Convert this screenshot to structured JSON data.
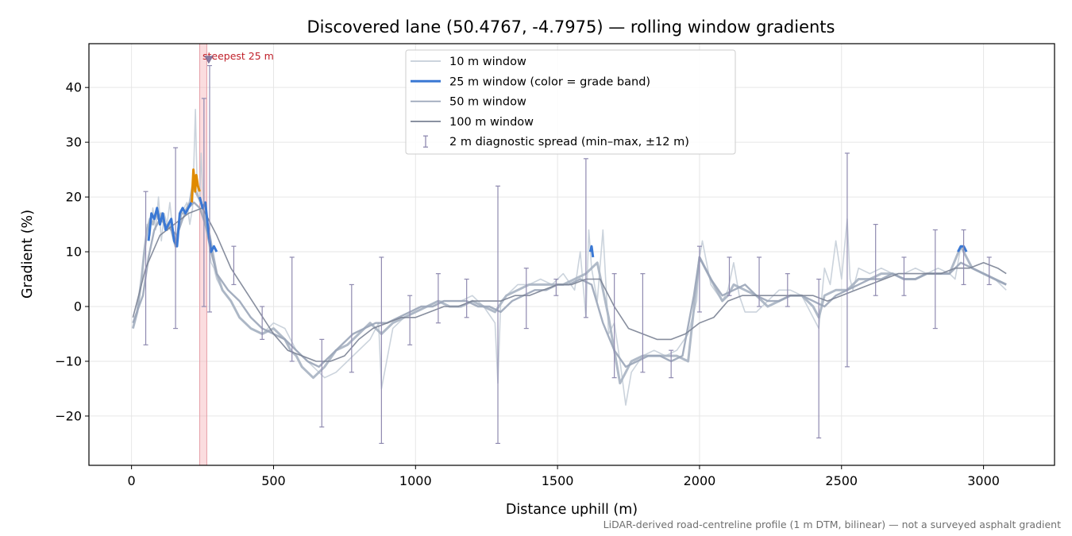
{
  "chart_data": {
    "type": "line",
    "title": "Discovered lane (50.4767, -4.7975) — rolling window gradients",
    "xlabel": "Distance uphill (m)",
    "ylabel": "Gradient (%)",
    "xlim": [
      -150,
      3250
    ],
    "ylim": [
      -29,
      48
    ],
    "x_ticks": [
      0,
      500,
      1000,
      1500,
      2000,
      2500,
      3000
    ],
    "y_ticks": [
      -20,
      -10,
      0,
      10,
      20,
      30,
      40
    ],
    "x_tick_labels": [
      "0",
      "500",
      "1000",
      "1500",
      "2000",
      "2500",
      "3000"
    ],
    "y_tick_labels": [
      "−20",
      "−10",
      "0",
      "10",
      "20",
      "30",
      "40"
    ],
    "grid": true,
    "legend_position": "top-center",
    "footnote": "LiDAR-derived road-centreline profile (1 m DTM, bilinear) — not a surveyed asphalt gradient",
    "annotation": {
      "label": "steepest 25 m",
      "span_x": [
        240,
        265
      ],
      "marker": {
        "x": 272,
        "y": 45
      },
      "color": "#c0202a"
    },
    "legend": [
      {
        "label": "10 m window",
        "style": "line",
        "color": "#c5ced8"
      },
      {
        "label": "25 m window (color = grade band)",
        "style": "line-thick",
        "color": "#3a78d4"
      },
      {
        "label": "50 m window",
        "style": "line",
        "color": "#9aa5b8"
      },
      {
        "label": "100 m window",
        "style": "line",
        "color": "#7a8294"
      },
      {
        "label": "2 m diagnostic spread (min–max, ±12 m)",
        "style": "errorbar",
        "color": "#8f8ab0"
      }
    ],
    "series": [
      {
        "name": "10 m window",
        "color": "#c5ced8",
        "x": [
          5,
          20,
          35,
          45,
          55,
          65,
          75,
          85,
          95,
          105,
          115,
          125,
          135,
          145,
          155,
          165,
          175,
          185,
          195,
          205,
          215,
          225,
          230,
          235,
          240,
          245,
          250,
          255,
          260,
          265,
          270,
          275,
          280,
          290,
          300,
          320,
          350,
          380,
          420,
          460,
          500,
          540,
          560,
          580,
          600,
          640,
          680,
          720,
          760,
          800,
          840,
          870,
          880,
          920,
          960,
          1000,
          1040,
          1080,
          1120,
          1160,
          1200,
          1240,
          1280,
          1290,
          1300,
          1320,
          1360,
          1400,
          1440,
          1480,
          1520,
          1560,
          1580,
          1600,
          1610,
          1620,
          1640,
          1660,
          1680,
          1700,
          1720,
          1740,
          1760,
          1800,
          1840,
          1880,
          1920,
          1960,
          1990,
          2000,
          2010,
          2040,
          2080,
          2100,
          2120,
          2140,
          2160,
          2200,
          2240,
          2280,
          2320,
          2360,
          2400,
          2420,
          2440,
          2460,
          2480,
          2500,
          2520,
          2530,
          2540,
          2560,
          2600,
          2640,
          2680,
          2720,
          2760,
          2800,
          2840,
          2880,
          2900,
          2920,
          2960,
          3000,
          3040,
          3080
        ],
        "y": [
          -4,
          -1,
          5,
          10,
          15,
          13,
          18,
          14,
          20,
          12,
          17,
          15,
          19,
          14,
          12,
          15,
          17,
          18,
          19,
          15,
          18,
          36,
          24,
          20,
          19,
          28,
          22,
          18,
          16,
          15,
          13,
          10,
          8,
          7,
          5,
          3,
          1,
          -2,
          -4,
          -5,
          -3,
          -4,
          -6,
          -8,
          -9,
          -11,
          -13,
          -12,
          -10,
          -8,
          -6,
          -3,
          -15,
          -4,
          -2,
          -1,
          0,
          1,
          1,
          1,
          2,
          0,
          -3,
          -14,
          1,
          2,
          4,
          4,
          5,
          4,
          6,
          3,
          10,
          -2,
          14,
          7,
          1,
          14,
          -5,
          -3,
          -10,
          -18,
          -12,
          -9,
          -8,
          -9,
          -8,
          -5,
          1,
          9,
          12,
          4,
          1,
          3,
          8,
          2,
          -1,
          -1,
          1,
          3,
          3,
          2,
          -2,
          -4,
          7,
          4,
          12,
          5,
          16,
          5,
          3,
          7,
          6,
          7,
          6,
          6,
          7,
          6,
          7,
          6,
          5,
          11,
          7,
          6,
          5,
          3
        ],
        "line_width": 1.6
      },
      {
        "name": "25 m window (color = grade band)",
        "color": "#a7b2c2",
        "x": [
          5,
          20,
          35,
          45,
          55,
          65,
          75,
          85,
          95,
          105,
          115,
          125,
          135,
          145,
          155,
          165,
          175,
          185,
          195,
          205,
          215,
          225,
          235,
          245,
          255,
          265,
          275,
          285,
          300,
          320,
          350,
          380,
          420,
          460,
          500,
          540,
          560,
          580,
          600,
          640,
          680,
          720,
          760,
          800,
          840,
          880,
          920,
          960,
          1000,
          1040,
          1080,
          1120,
          1160,
          1200,
          1240,
          1280,
          1320,
          1360,
          1400,
          1440,
          1480,
          1520,
          1560,
          1600,
          1640,
          1680,
          1700,
          1720,
          1740,
          1760,
          1800,
          1840,
          1880,
          1920,
          1960,
          2000,
          2040,
          2080,
          2100,
          2120,
          2160,
          2200,
          2240,
          2280,
          2320,
          2360,
          2400,
          2420,
          2440,
          2480,
          2520,
          2560,
          2600,
          2640,
          2680,
          2720,
          2760,
          2800,
          2840,
          2880,
          2920,
          2960,
          3000,
          3040,
          3080
        ],
        "y": [
          -4,
          -1,
          5,
          10,
          14,
          16,
          15,
          17,
          16,
          17,
          15,
          14,
          15,
          13,
          11,
          14,
          17,
          17,
          18,
          19,
          22,
          21,
          20,
          19,
          17,
          15,
          13,
          10,
          6,
          3,
          1,
          -2,
          -4,
          -5,
          -4,
          -6,
          -8,
          -9,
          -11,
          -13,
          -11,
          -8,
          -7,
          -5,
          -3,
          -5,
          -3,
          -2,
          -1,
          0,
          1,
          0,
          0,
          1,
          0,
          -1,
          2,
          3,
          4,
          4,
          4,
          4,
          5,
          6,
          8,
          -2,
          -8,
          -14,
          -12,
          -10,
          -9,
          -9,
          -9,
          -9,
          -10,
          9,
          5,
          1,
          2,
          4,
          3,
          2,
          0,
          1,
          2,
          2,
          0,
          -2,
          2,
          3,
          3,
          5,
          5,
          6,
          6,
          5,
          5,
          6,
          6,
          6,
          11,
          7,
          6,
          5,
          4
        ],
        "line_width": 3
      },
      {
        "name": "50 m window",
        "color": "#9aa5b8",
        "x": [
          5,
          40,
          60,
          80,
          100,
          120,
          140,
          160,
          180,
          200,
          220,
          240,
          260,
          280,
          300,
          340,
          380,
          420,
          460,
          500,
          540,
          580,
          620,
          660,
          700,
          740,
          780,
          820,
          860,
          900,
          940,
          980,
          1020,
          1060,
          1100,
          1140,
          1180,
          1220,
          1260,
          1300,
          1340,
          1380,
          1420,
          1460,
          1500,
          1540,
          1580,
          1620,
          1660,
          1700,
          1740,
          1780,
          1820,
          1860,
          1900,
          1940,
          1980,
          2000,
          2040,
          2080,
          2120,
          2160,
          2200,
          2240,
          2280,
          2320,
          2360,
          2400,
          2440,
          2480,
          2520,
          2560,
          2600,
          2640,
          2680,
          2720,
          2760,
          2800,
          2840,
          2880,
          2920,
          2960,
          3000,
          3040,
          3080
        ],
        "y": [
          -3,
          2,
          9,
          14,
          16,
          15,
          14,
          13,
          16,
          18,
          19,
          18,
          15,
          10,
          6,
          3,
          1,
          -2,
          -4,
          -5,
          -6,
          -8,
          -10,
          -11,
          -9,
          -7,
          -5,
          -4,
          -3,
          -3,
          -2,
          -1,
          0,
          0,
          1,
          1,
          1,
          0,
          0,
          -1,
          1,
          2,
          3,
          3,
          4,
          4,
          5,
          4,
          -3,
          -8,
          -11,
          -10,
          -9,
          -9,
          -10,
          -9,
          2,
          9,
          5,
          2,
          3,
          4,
          2,
          1,
          1,
          2,
          2,
          1,
          0,
          2,
          3,
          4,
          5,
          5,
          6,
          5,
          5,
          6,
          6,
          6,
          8,
          7,
          6,
          5,
          4
        ],
        "line_width": 2.4
      },
      {
        "name": "100 m window",
        "color": "#7a8294",
        "x": [
          5,
          50,
          100,
          150,
          200,
          250,
          300,
          350,
          400,
          450,
          500,
          550,
          600,
          650,
          700,
          750,
          800,
          850,
          900,
          950,
          1000,
          1050,
          1100,
          1150,
          1200,
          1250,
          1300,
          1350,
          1400,
          1450,
          1500,
          1550,
          1600,
          1650,
          1700,
          1750,
          1800,
          1850,
          1900,
          1950,
          2000,
          2050,
          2100,
          2150,
          2200,
          2250,
          2300,
          2350,
          2400,
          2450,
          2500,
          2550,
          2600,
          2650,
          2700,
          2750,
          2800,
          2850,
          2900,
          2950,
          3000,
          3050,
          3080
        ],
        "y": [
          -2,
          7,
          13,
          15,
          17,
          18,
          13,
          7,
          3,
          -1,
          -5,
          -8,
          -9,
          -10,
          -10,
          -9,
          -6,
          -4,
          -3,
          -2,
          -2,
          -1,
          0,
          0,
          1,
          1,
          1,
          2,
          2,
          3,
          4,
          4,
          5,
          5,
          0,
          -4,
          -5,
          -6,
          -6,
          -5,
          -3,
          -2,
          1,
          2,
          2,
          2,
          2,
          2,
          2,
          1,
          2,
          3,
          4,
          5,
          6,
          6,
          6,
          6,
          7,
          7,
          8,
          7,
          6
        ],
        "line_width": 1.6
      }
    ],
    "highlight_segments": [
      {
        "label": "grade band orange",
        "color": "#e08a00",
        "x": [
          212,
          218,
          224,
          228,
          234,
          240
        ],
        "y": [
          19,
          25,
          21,
          24,
          22,
          21
        ]
      },
      {
        "label": "grade band blue",
        "color": "#3a78d4",
        "x": [
          60,
          70,
          80,
          90,
          100,
          110,
          120,
          130,
          140,
          150,
          160,
          170,
          180,
          190,
          200,
          210
        ],
        "y": [
          12,
          17,
          16,
          18,
          15,
          17,
          14,
          15,
          16,
          12,
          11,
          17,
          18,
          17,
          18,
          19
        ]
      },
      {
        "label": "grade band blue",
        "color": "#3a78d4",
        "x": [
          240,
          250,
          260,
          270,
          280,
          290,
          300
        ],
        "y": [
          20,
          18,
          19,
          14,
          10,
          11,
          10
        ]
      },
      {
        "label": "grade band blue",
        "color": "#3a78d4",
        "x": [
          1615,
          1620,
          1625
        ],
        "y": [
          10,
          11,
          9
        ]
      },
      {
        "label": "grade band blue",
        "color": "#3a78d4",
        "x": [
          2910,
          2920,
          2930,
          2940
        ],
        "y": [
          10,
          11,
          11,
          10
        ]
      }
    ],
    "errorbars": [
      {
        "x": 50,
        "lo": -7,
        "hi": 21
      },
      {
        "x": 155,
        "lo": -4,
        "hi": 29
      },
      {
        "x": 255,
        "lo": 0,
        "hi": 38
      },
      {
        "x": 275,
        "lo": -1,
        "hi": 44
      },
      {
        "x": 360,
        "lo": 4,
        "hi": 11
      },
      {
        "x": 460,
        "lo": -6,
        "hi": 0
      },
      {
        "x": 565,
        "lo": -10,
        "hi": 9
      },
      {
        "x": 670,
        "lo": -22,
        "hi": -6
      },
      {
        "x": 775,
        "lo": -12,
        "hi": 4
      },
      {
        "x": 880,
        "lo": -25,
        "hi": 9
      },
      {
        "x": 980,
        "lo": -7,
        "hi": 2
      },
      {
        "x": 1080,
        "lo": -3,
        "hi": 6
      },
      {
        "x": 1180,
        "lo": -2,
        "hi": 5
      },
      {
        "x": 1290,
        "lo": -25,
        "hi": 22
      },
      {
        "x": 1390,
        "lo": -4,
        "hi": 7
      },
      {
        "x": 1495,
        "lo": 2,
        "hi": 5
      },
      {
        "x": 1600,
        "lo": -2,
        "hi": 27
      },
      {
        "x": 1700,
        "lo": -13,
        "hi": 6
      },
      {
        "x": 1800,
        "lo": -12,
        "hi": 6
      },
      {
        "x": 1900,
        "lo": -13,
        "hi": -8
      },
      {
        "x": 2000,
        "lo": -1,
        "hi": 11
      },
      {
        "x": 2105,
        "lo": 2,
        "hi": 9
      },
      {
        "x": 2210,
        "lo": 0,
        "hi": 9
      },
      {
        "x": 2310,
        "lo": 0,
        "hi": 6
      },
      {
        "x": 2420,
        "lo": -24,
        "hi": 5
      },
      {
        "x": 2520,
        "lo": -11,
        "hi": 28
      },
      {
        "x": 2620,
        "lo": 2,
        "hi": 15
      },
      {
        "x": 2720,
        "lo": 2,
        "hi": 9
      },
      {
        "x": 2830,
        "lo": -4,
        "hi": 14
      },
      {
        "x": 2930,
        "lo": 4,
        "hi": 14
      },
      {
        "x": 3020,
        "lo": 4,
        "hi": 9
      }
    ]
  }
}
